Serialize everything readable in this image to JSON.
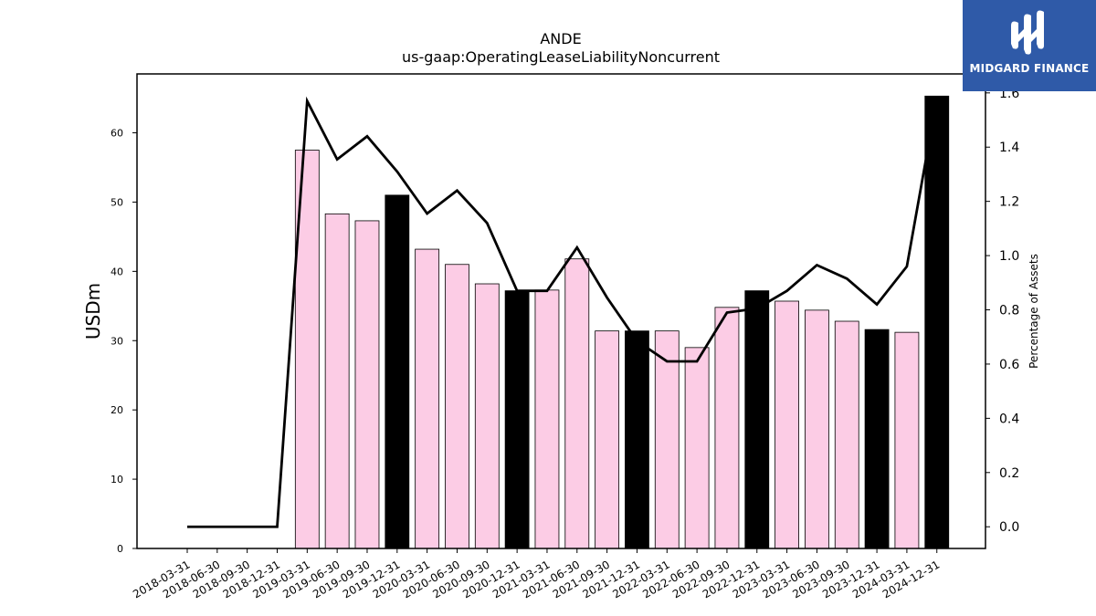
{
  "logo": {
    "text": "MIDGARD FINANCE"
  },
  "chart_data": {
    "type": "bar",
    "title": "ANDE",
    "subtitle": "us-gaap:OperatingLeaseLiabilityNoncurrent",
    "ylabel": "USDm",
    "y2label": "Percentage of Assets",
    "ylim": [
      0,
      68.5
    ],
    "y2lim": [
      -0.08,
      1.67
    ],
    "yticks": [
      0,
      10,
      20,
      30,
      40,
      50,
      60
    ],
    "y2ticks": [
      "0.0",
      "0.2",
      "0.4",
      "0.6",
      "0.8",
      "1.0",
      "1.2",
      "1.4",
      "1.6"
    ],
    "categories": [
      "2018-03-31",
      "2018-06-30",
      "2018-09-30",
      "2018-12-31",
      "2019-03-31",
      "2019-06-30",
      "2019-09-30",
      "2019-12-31",
      "2020-03-31",
      "2020-06-30",
      "2020-09-30",
      "2020-12-31",
      "2021-03-31",
      "2021-06-30",
      "2021-09-30",
      "2021-12-31",
      "2022-03-31",
      "2022-06-30",
      "2022-09-30",
      "2022-12-31",
      "2023-03-31",
      "2023-06-30",
      "2023-09-30",
      "2023-12-31",
      "2024-03-31",
      "2024-12-31"
    ],
    "series": [
      {
        "type": "bar",
        "values": [
          null,
          null,
          null,
          null,
          57.5,
          48.3,
          47.3,
          51.0,
          43.2,
          41.0,
          38.2,
          37.2,
          37.3,
          41.8,
          31.4,
          31.4,
          31.4,
          29.0,
          34.8,
          37.2,
          35.7,
          34.4,
          32.8,
          31.6,
          31.2,
          65.3
        ],
        "colors": [
          "",
          "",
          "",
          "",
          "#fccce5",
          "#fccce5",
          "#fccce5",
          "#000000",
          "#fccce5",
          "#fccce5",
          "#fccce5",
          "#000000",
          "#fccce5",
          "#fccce5",
          "#fccce5",
          "#000000",
          "#fccce5",
          "#fccce5",
          "#fccce5",
          "#000000",
          "#fccce5",
          "#fccce5",
          "#fccce5",
          "#000000",
          "#fccce5",
          "#000000"
        ]
      },
      {
        "type": "line",
        "axis": "right",
        "color": "#000000",
        "values": [
          0.0,
          0.0,
          0.0,
          0.0,
          1.57,
          1.355,
          1.44,
          1.31,
          1.155,
          1.24,
          1.12,
          0.87,
          0.87,
          1.03,
          0.845,
          0.685,
          0.61,
          0.61,
          0.79,
          0.805,
          0.87,
          0.965,
          0.915,
          0.82,
          0.96,
          1.58
        ]
      }
    ],
    "grid": false,
    "legend": "none"
  }
}
